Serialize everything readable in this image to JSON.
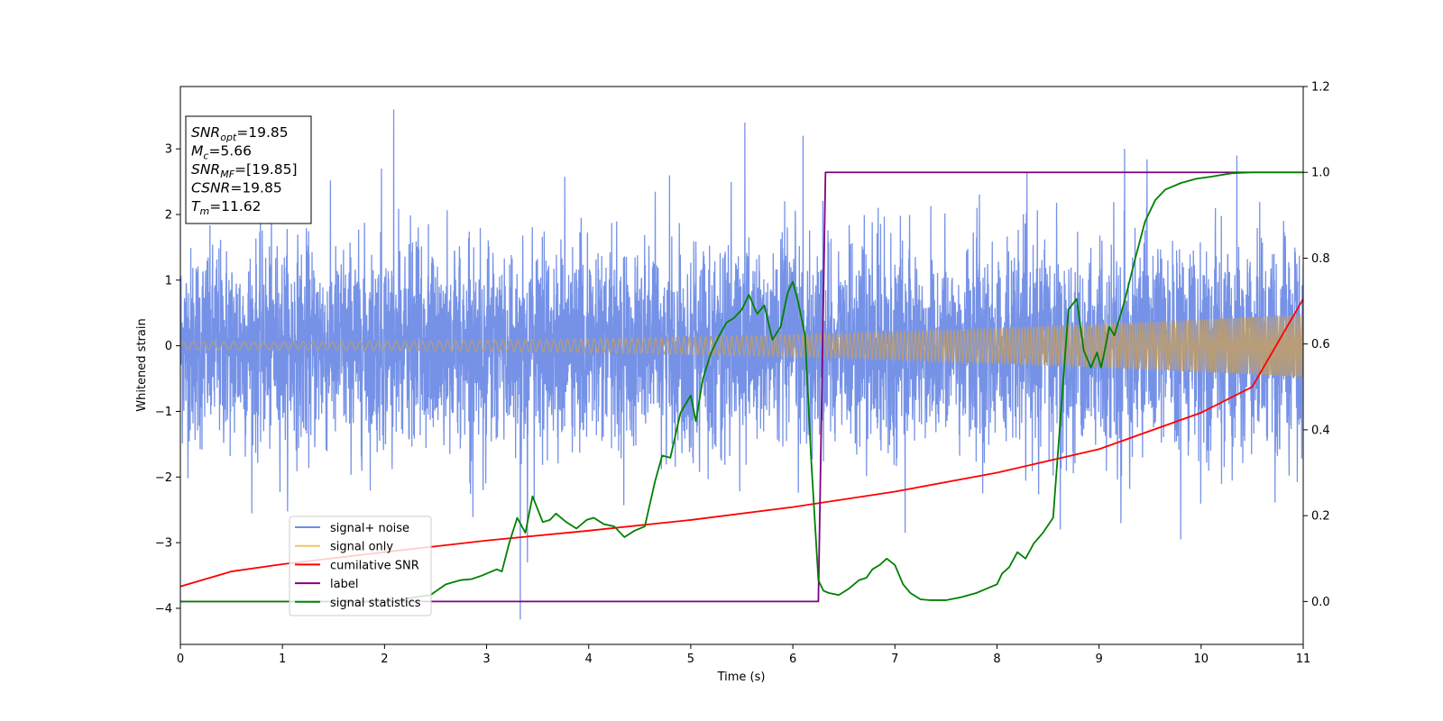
{
  "chart_data": {
    "type": "line",
    "xlabel": "Time (s)",
    "ylabel": "Whitened strain",
    "xlim": [
      0,
      11
    ],
    "ylim_left": [
      -4.55,
      3.95
    ],
    "ylim_right": [
      -0.1,
      1.2
    ],
    "x_ticks": [
      "0",
      "1",
      "2",
      "3",
      "4",
      "5",
      "6",
      "7",
      "8",
      "9",
      "10",
      "11"
    ],
    "y_ticks_left": [
      "3",
      "2",
      "1",
      "0",
      "−1",
      "−2",
      "−3",
      "−4"
    ],
    "y_ticks_right": [
      "1.2",
      "1.0",
      "0.8",
      "0.6",
      "0.4",
      "0.2",
      "0.0"
    ],
    "grid": false,
    "legend_position": "lower-left",
    "series": [
      {
        "name": "signal+ noise",
        "axis": "left",
        "color": "#6f8ce6",
        "description_values": {
          "noise_std": 0.75,
          "max": 3.6,
          "min": -4.17
        },
        "spikes": [
          [
            2.09,
            3.6
          ],
          [
            5.53,
            3.4
          ],
          [
            6.1,
            3.2
          ],
          [
            9.25,
            3.0
          ],
          [
            1.97,
            2.7
          ],
          [
            3.33,
            -4.17
          ],
          [
            3.4,
            -3.3
          ],
          [
            9.8,
            -2.95
          ],
          [
            7.1,
            -2.85
          ],
          [
            8.62,
            -2.8
          ]
        ]
      },
      {
        "name": "signal only",
        "axis": "left",
        "color": "#f5c46a",
        "amplitude_start": 0.06,
        "amplitude_end": 0.48
      },
      {
        "name": "cumilative SNR",
        "axis": "right",
        "color": "#ff0000",
        "x": [
          0,
          0.5,
          1,
          2,
          3,
          4,
          5,
          6,
          7,
          8,
          9,
          10,
          10.5,
          11
        ],
        "y": [
          0.035,
          0.07,
          0.087,
          0.115,
          0.142,
          0.165,
          0.19,
          0.22,
          0.256,
          0.3,
          0.355,
          0.44,
          0.5,
          0.705
        ]
      },
      {
        "name": "label",
        "axis": "right",
        "color": "#800080",
        "x": [
          0,
          6.25,
          6.32,
          11
        ],
        "y": [
          0,
          0,
          1,
          1
        ]
      },
      {
        "name": "signal statistics",
        "axis": "right",
        "color": "#008000",
        "x": [
          0,
          2.1,
          2.3,
          2.45,
          2.6,
          2.75,
          2.85,
          2.95,
          3.05,
          3.1,
          3.15,
          3.22,
          3.3,
          3.38,
          3.45,
          3.55,
          3.62,
          3.68,
          3.78,
          3.88,
          3.98,
          4.05,
          4.15,
          4.25,
          4.35,
          4.45,
          4.55,
          4.65,
          4.72,
          4.8,
          4.9,
          5.0,
          5.05,
          5.12,
          5.2,
          5.28,
          5.35,
          5.42,
          5.5,
          5.57,
          5.65,
          5.72,
          5.8,
          5.88,
          5.95,
          6.0,
          6.05,
          6.12,
          6.18,
          6.25,
          6.3,
          6.35,
          6.45,
          6.55,
          6.65,
          6.72,
          6.78,
          6.85,
          6.92,
          7.0,
          7.08,
          7.15,
          7.25,
          7.35,
          7.5,
          7.65,
          7.8,
          7.9,
          8.0,
          8.05,
          8.12,
          8.2,
          8.28,
          8.36,
          8.45,
          8.55,
          8.62,
          8.7,
          8.78,
          8.85,
          8.92,
          8.98,
          9.02,
          9.06,
          9.1,
          9.15,
          9.25,
          9.35,
          9.45,
          9.55,
          9.65,
          9.8,
          9.95,
          10.1,
          10.3,
          10.5,
          11
        ],
        "y": [
          0.0,
          0.0,
          0.01,
          0.015,
          0.04,
          0.05,
          0.052,
          0.06,
          0.07,
          0.075,
          0.07,
          0.135,
          0.195,
          0.16,
          0.245,
          0.185,
          0.19,
          0.205,
          0.185,
          0.17,
          0.19,
          0.195,
          0.18,
          0.175,
          0.15,
          0.165,
          0.175,
          0.28,
          0.34,
          0.335,
          0.44,
          0.48,
          0.42,
          0.52,
          0.58,
          0.62,
          0.65,
          0.66,
          0.68,
          0.715,
          0.67,
          0.69,
          0.61,
          0.64,
          0.72,
          0.745,
          0.7,
          0.62,
          0.33,
          0.05,
          0.025,
          0.02,
          0.015,
          0.03,
          0.05,
          0.055,
          0.075,
          0.085,
          0.1,
          0.085,
          0.04,
          0.02,
          0.005,
          0.003,
          0.003,
          0.01,
          0.02,
          0.03,
          0.04,
          0.065,
          0.08,
          0.115,
          0.1,
          0.135,
          0.16,
          0.195,
          0.42,
          0.68,
          0.705,
          0.585,
          0.545,
          0.58,
          0.545,
          0.59,
          0.64,
          0.62,
          0.7,
          0.795,
          0.885,
          0.935,
          0.96,
          0.975,
          0.985,
          0.99,
          0.998,
          1.0,
          1.0
        ]
      }
    ],
    "info_box": [
      {
        "main": "SNR",
        "sub": "opt",
        "value": "=19.85"
      },
      {
        "main": "M",
        "sub": "c",
        "value": "=5.66"
      },
      {
        "main": "SNR",
        "sub": "MF",
        "value": "=[19.85]"
      },
      {
        "main": "CSNR",
        "sub": "",
        "value": "=19.85"
      },
      {
        "main": "T",
        "sub": "m",
        "value": "=11.62"
      }
    ]
  }
}
